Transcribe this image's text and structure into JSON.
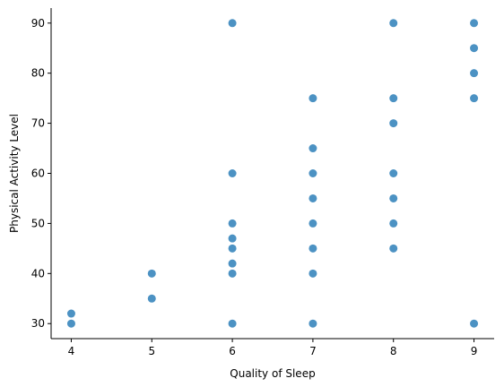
{
  "chart_data": {
    "type": "scatter",
    "title": "",
    "xlabel": "Quality of Sleep",
    "ylabel": "Physical Activity Level",
    "xlim": [
      3.75,
      9.25
    ],
    "ylim": [
      27,
      93
    ],
    "xticks": [
      4,
      5,
      6,
      7,
      8,
      9
    ],
    "yticks": [
      30,
      40,
      50,
      60,
      70,
      80,
      90
    ],
    "grid": false,
    "legend": "none",
    "marker_color": "#1f77b4",
    "marker_alpha": 0.8,
    "points": [
      {
        "x": 4,
        "y": 30
      },
      {
        "x": 4,
        "y": 32
      },
      {
        "x": 5,
        "y": 35
      },
      {
        "x": 5,
        "y": 40
      },
      {
        "x": 6,
        "y": 30
      },
      {
        "x": 6,
        "y": 40
      },
      {
        "x": 6,
        "y": 42
      },
      {
        "x": 6,
        "y": 45
      },
      {
        "x": 6,
        "y": 47
      },
      {
        "x": 6,
        "y": 50
      },
      {
        "x": 6,
        "y": 60
      },
      {
        "x": 6,
        "y": 90
      },
      {
        "x": 7,
        "y": 30
      },
      {
        "x": 7,
        "y": 40
      },
      {
        "x": 7,
        "y": 45
      },
      {
        "x": 7,
        "y": 50
      },
      {
        "x": 7,
        "y": 55
      },
      {
        "x": 7,
        "y": 60
      },
      {
        "x": 7,
        "y": 65
      },
      {
        "x": 7,
        "y": 75
      },
      {
        "x": 8,
        "y": 45
      },
      {
        "x": 8,
        "y": 50
      },
      {
        "x": 8,
        "y": 55
      },
      {
        "x": 8,
        "y": 60
      },
      {
        "x": 8,
        "y": 70
      },
      {
        "x": 8,
        "y": 75
      },
      {
        "x": 8,
        "y": 90
      },
      {
        "x": 9,
        "y": 30
      },
      {
        "x": 9,
        "y": 75
      },
      {
        "x": 9,
        "y": 80
      },
      {
        "x": 9,
        "y": 85
      },
      {
        "x": 9,
        "y": 90
      }
    ]
  }
}
